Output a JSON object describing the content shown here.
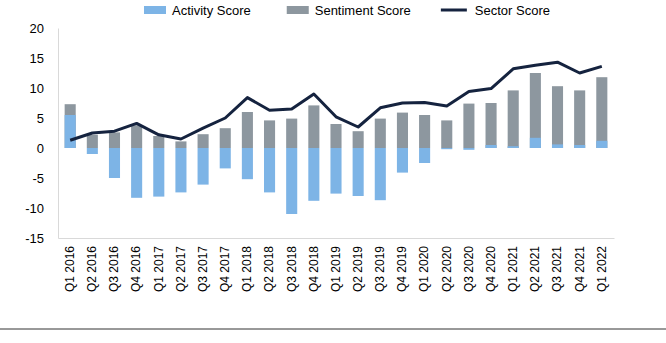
{
  "chart_data": {
    "type": "bar",
    "categories": [
      "Q1 2016",
      "Q2 2016",
      "Q3 2016",
      "Q4 2016",
      "Q1 2017",
      "Q2 2017",
      "Q3 2017",
      "Q4 2017",
      "Q1 2018",
      "Q2 2018",
      "Q3 2018",
      "Q4 2018",
      "Q1 2019",
      "Q2 2019",
      "Q3 2019",
      "Q4 2019",
      "Q1 2020",
      "Q2 2020",
      "Q3 2020",
      "Q4 2020",
      "Q1 2021",
      "Q2 2021",
      "Q3 2021",
      "Q4 2021",
      "Q1 2022"
    ],
    "series": [
      {
        "name": "Activity Score",
        "type": "bar",
        "color": "#7db4e6",
        "values": [
          5.5,
          -1,
          -5,
          -8.3,
          -8.1,
          -7.4,
          -6.1,
          -3.4,
          -5.2,
          -7.4,
          -11,
          -8.8,
          -7.6,
          -8,
          -8.7,
          -4.1,
          -2.5,
          -0.2,
          -0.3,
          0.5,
          0.3,
          1.7,
          0.6,
          0.5,
          1.2
        ]
      },
      {
        "name": "Sentiment Score",
        "type": "bar",
        "color": "#8d979f",
        "values": [
          7.3,
          2.2,
          2.6,
          3.8,
          2.0,
          1.1,
          2.3,
          3.3,
          6.0,
          4.6,
          4.9,
          7.1,
          4.0,
          2.8,
          4.9,
          5.9,
          5.5,
          4.6,
          7.4,
          7.5,
          9.6,
          12.5,
          10.3,
          9.6,
          11.8
        ]
      },
      {
        "name": "Sector Score",
        "type": "line",
        "color": "#15233f",
        "values": [
          1.3,
          2.5,
          2.8,
          4.1,
          2.2,
          1.5,
          3.3,
          5.0,
          8.4,
          6.3,
          6.5,
          9.0,
          5.2,
          3.5,
          6.7,
          7.5,
          7.6,
          7.0,
          9.4,
          9.9,
          13.2,
          13.8,
          14.3,
          12.5,
          13.6
        ]
      }
    ],
    "ylim": [
      -15,
      20
    ],
    "yticks": [
      -15,
      -10,
      -5,
      0,
      5,
      10,
      15,
      20
    ],
    "grid": false,
    "stacked": false,
    "legend": "top"
  }
}
